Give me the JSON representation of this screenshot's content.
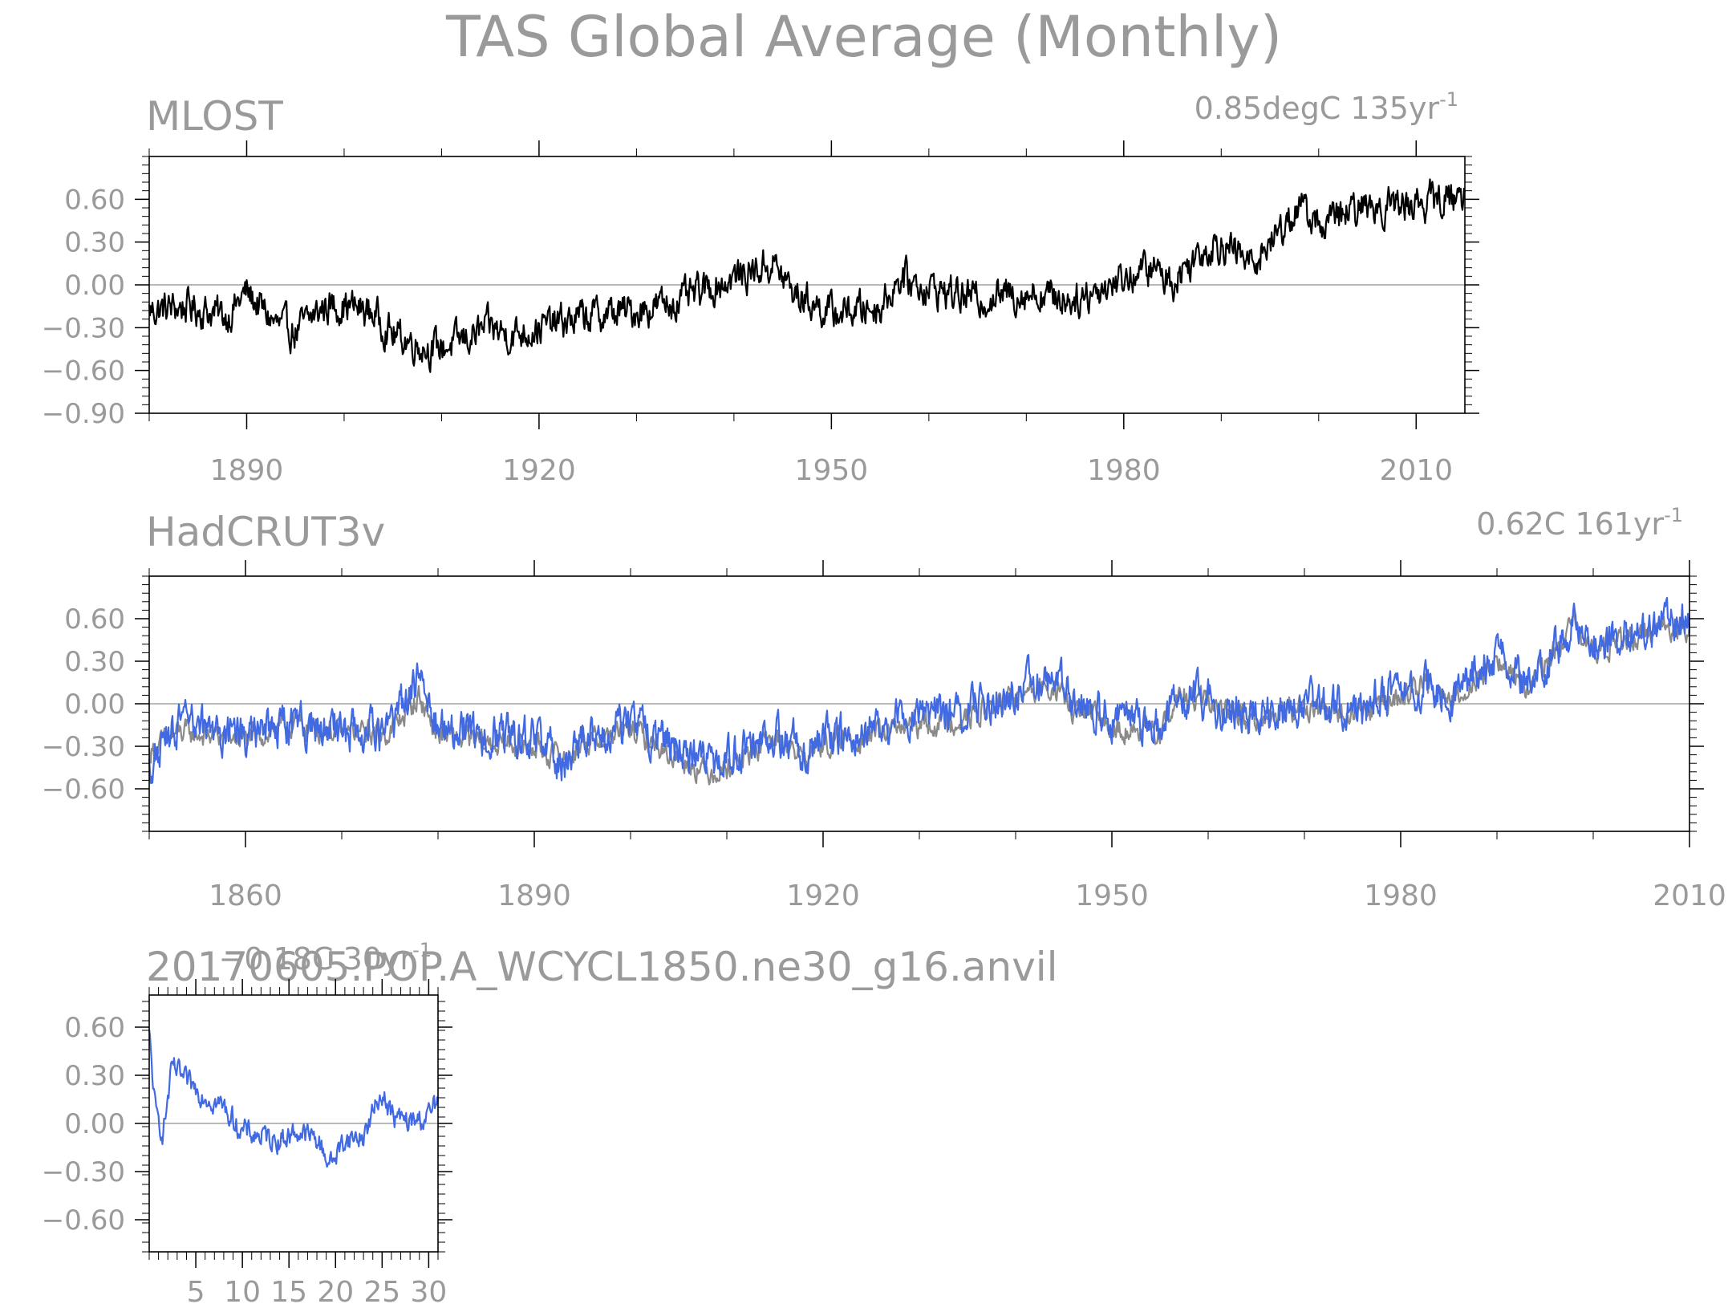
{
  "title": "TAS Global Average (Monthly)",
  "colors": {
    "text": "#9a9a9a",
    "axis": "#000000",
    "zero_line": "#a0a0a0",
    "obs_black": "#000000",
    "obs_gray": "#8a8a8a",
    "model_blue": "#4169e1"
  },
  "chart_data": [
    {
      "id": "mlost",
      "type": "line",
      "title": "MLOST",
      "trend_text": "0.85degC 135yr",
      "trend_exp": "-1",
      "xlim": [
        1880,
        2015
      ],
      "ylim": [
        -0.9,
        0.9
      ],
      "x_ticks": [
        1890,
        1920,
        1950,
        1980,
        2010
      ],
      "x_tick_labels": [
        "1890",
        "1920",
        "1950",
        "1980",
        "2010"
      ],
      "y_ticks": [
        0.6,
        0.3,
        0.0,
        -0.3,
        -0.6,
        -0.9
      ],
      "y_tick_labels": [
        "0.60",
        "0.30",
        "0.00",
        "−0.30",
        "−0.60",
        "−0.90"
      ],
      "zero_line": true,
      "series": [
        {
          "color": "#000000",
          "anchors": [
            [
              1880,
              -0.18
            ],
            [
              1884,
              -0.15
            ],
            [
              1888,
              -0.22
            ],
            [
              1890,
              -0.05
            ],
            [
              1893,
              -0.28
            ],
            [
              1895,
              -0.33
            ],
            [
              1898,
              -0.15
            ],
            [
              1900,
              -0.14
            ],
            [
              1903,
              -0.2
            ],
            [
              1905,
              -0.35
            ],
            [
              1909,
              -0.45
            ],
            [
              1911,
              -0.42
            ],
            [
              1915,
              -0.3
            ],
            [
              1917,
              -0.35
            ],
            [
              1920,
              -0.3
            ],
            [
              1925,
              -0.22
            ],
            [
              1930,
              -0.18
            ],
            [
              1935,
              -0.1
            ],
            [
              1940,
              0.05
            ],
            [
              1944,
              0.15
            ],
            [
              1946,
              -0.05
            ],
            [
              1950,
              -0.2
            ],
            [
              1955,
              -0.15
            ],
            [
              1957,
              0.05
            ],
            [
              1960,
              -0.02
            ],
            [
              1965,
              -0.1
            ],
            [
              1970,
              -0.05
            ],
            [
              1975,
              -0.1
            ],
            [
              1980,
              0.05
            ],
            [
              1983,
              0.12
            ],
            [
              1985,
              0.02
            ],
            [
              1988,
              0.25
            ],
            [
              1990,
              0.3
            ],
            [
              1993,
              0.15
            ],
            [
              1995,
              0.3
            ],
            [
              1998,
              0.55
            ],
            [
              2000,
              0.42
            ],
            [
              2005,
              0.55
            ],
            [
              2010,
              0.58
            ],
            [
              2015,
              0.62
            ]
          ],
          "amp": 0.1
        }
      ]
    },
    {
      "id": "hadcrut",
      "type": "line",
      "title": "HadCRUT3v",
      "trend_text": "0.62C 161yr",
      "trend_exp": "-1",
      "xlim": [
        1850,
        2010
      ],
      "ylim": [
        -0.9,
        0.9
      ],
      "x_ticks": [
        1860,
        1890,
        1920,
        1950,
        1980,
        2010
      ],
      "x_tick_labels": [
        "1860",
        "1890",
        "1920",
        "1950",
        "1980",
        "2010"
      ],
      "y_ticks": [
        0.6,
        0.3,
        0.0,
        -0.3,
        -0.6
      ],
      "y_tick_labels": [
        "0.60",
        "0.30",
        "0.00",
        "−0.30",
        "−0.60"
      ],
      "zero_line": true,
      "series": [
        {
          "color": "#8a8a8a",
          "anchors": [
            [
              1850,
              -0.35
            ],
            [
              1853,
              -0.2
            ],
            [
              1860,
              -0.25
            ],
            [
              1865,
              -0.15
            ],
            [
              1870,
              -0.2
            ],
            [
              1875,
              -0.2
            ],
            [
              1878,
              0.05
            ],
            [
              1880,
              -0.22
            ],
            [
              1885,
              -0.28
            ],
            [
              1890,
              -0.3
            ],
            [
              1893,
              -0.4
            ],
            [
              1895,
              -0.28
            ],
            [
              1900,
              -0.18
            ],
            [
              1904,
              -0.35
            ],
            [
              1908,
              -0.48
            ],
            [
              1910,
              -0.45
            ],
            [
              1915,
              -0.25
            ],
            [
              1918,
              -0.38
            ],
            [
              1920,
              -0.28
            ],
            [
              1925,
              -0.22
            ],
            [
              1930,
              -0.15
            ],
            [
              1935,
              -0.1
            ],
            [
              1940,
              0.05
            ],
            [
              1944,
              0.12
            ],
            [
              1946,
              -0.05
            ],
            [
              1950,
              -0.15
            ],
            [
              1955,
              -0.22
            ],
            [
              1957,
              0.05
            ],
            [
              1960,
              0.0
            ],
            [
              1965,
              -0.12
            ],
            [
              1970,
              -0.02
            ],
            [
              1975,
              -0.08
            ],
            [
              1980,
              0.05
            ],
            [
              1983,
              0.15
            ],
            [
              1985,
              0.0
            ],
            [
              1988,
              0.2
            ],
            [
              1990,
              0.3
            ],
            [
              1993,
              0.12
            ],
            [
              1995,
              0.28
            ],
            [
              1998,
              0.55
            ],
            [
              2000,
              0.35
            ],
            [
              2005,
              0.5
            ],
            [
              2010,
              0.55
            ]
          ],
          "amp": 0.07
        },
        {
          "color": "#4169e1",
          "anchors": [
            [
              1850,
              -0.45
            ],
            [
              1853,
              -0.15
            ],
            [
              1860,
              -0.25
            ],
            [
              1865,
              -0.15
            ],
            [
              1870,
              -0.2
            ],
            [
              1875,
              -0.2
            ],
            [
              1878,
              0.2
            ],
            [
              1880,
              -0.15
            ],
            [
              1885,
              -0.2
            ],
            [
              1890,
              -0.25
            ],
            [
              1893,
              -0.42
            ],
            [
              1895,
              -0.25
            ],
            [
              1900,
              -0.15
            ],
            [
              1904,
              -0.3
            ],
            [
              1908,
              -0.42
            ],
            [
              1910,
              -0.4
            ],
            [
              1915,
              -0.2
            ],
            [
              1918,
              -0.33
            ],
            [
              1920,
              -0.25
            ],
            [
              1925,
              -0.2
            ],
            [
              1930,
              -0.1
            ],
            [
              1935,
              -0.05
            ],
            [
              1940,
              0.1
            ],
            [
              1944,
              0.18
            ],
            [
              1946,
              0.0
            ],
            [
              1950,
              -0.1
            ],
            [
              1955,
              -0.18
            ],
            [
              1957,
              0.08
            ],
            [
              1960,
              0.02
            ],
            [
              1965,
              -0.08
            ],
            [
              1970,
              0.0
            ],
            [
              1975,
              -0.05
            ],
            [
              1980,
              0.08
            ],
            [
              1983,
              0.18
            ],
            [
              1985,
              0.02
            ],
            [
              1988,
              0.22
            ],
            [
              1990,
              0.32
            ],
            [
              1993,
              0.15
            ],
            [
              1995,
              0.3
            ],
            [
              1998,
              0.58
            ],
            [
              2000,
              0.38
            ],
            [
              2005,
              0.52
            ],
            [
              2010,
              0.58
            ]
          ],
          "amp": 0.12
        }
      ]
    },
    {
      "id": "model",
      "type": "line",
      "title": "20170605.POP.A_WCYCL1850.ne30_g16.anvil",
      "trend_text": "−0.18C 30yr",
      "trend_exp": "-1",
      "xlim": [
        0,
        31
      ],
      "ylim": [
        -0.8,
        0.8
      ],
      "x_ticks": [
        5,
        10,
        15,
        20,
        25,
        30
      ],
      "x_tick_labels": [
        "5",
        "10",
        "15",
        "20",
        "25",
        "30"
      ],
      "y_ticks": [
        0.6,
        0.3,
        0.0,
        -0.3,
        -0.6
      ],
      "y_tick_labels": [
        "0.60",
        "0.30",
        "0.00",
        "−0.30",
        "−0.60"
      ],
      "zero_line": true,
      "series": [
        {
          "color": "#4169e1",
          "anchors": [
            [
              0,
              0.55
            ],
            [
              0.7,
              0.05
            ],
            [
              1.5,
              -0.05
            ],
            [
              2.5,
              0.35
            ],
            [
              4,
              0.25
            ],
            [
              6,
              0.18
            ],
            [
              8,
              0.1
            ],
            [
              10,
              -0.05
            ],
            [
              12,
              -0.08
            ],
            [
              14,
              -0.1
            ],
            [
              16,
              -0.05
            ],
            [
              18,
              -0.1
            ],
            [
              19.5,
              -0.25
            ],
            [
              21,
              -0.1
            ],
            [
              23,
              -0.08
            ],
            [
              25,
              0.2
            ],
            [
              26,
              0.05
            ],
            [
              28,
              0.0
            ],
            [
              30,
              0.05
            ],
            [
              31,
              0.15
            ]
          ],
          "amp": 0.06
        }
      ]
    }
  ]
}
